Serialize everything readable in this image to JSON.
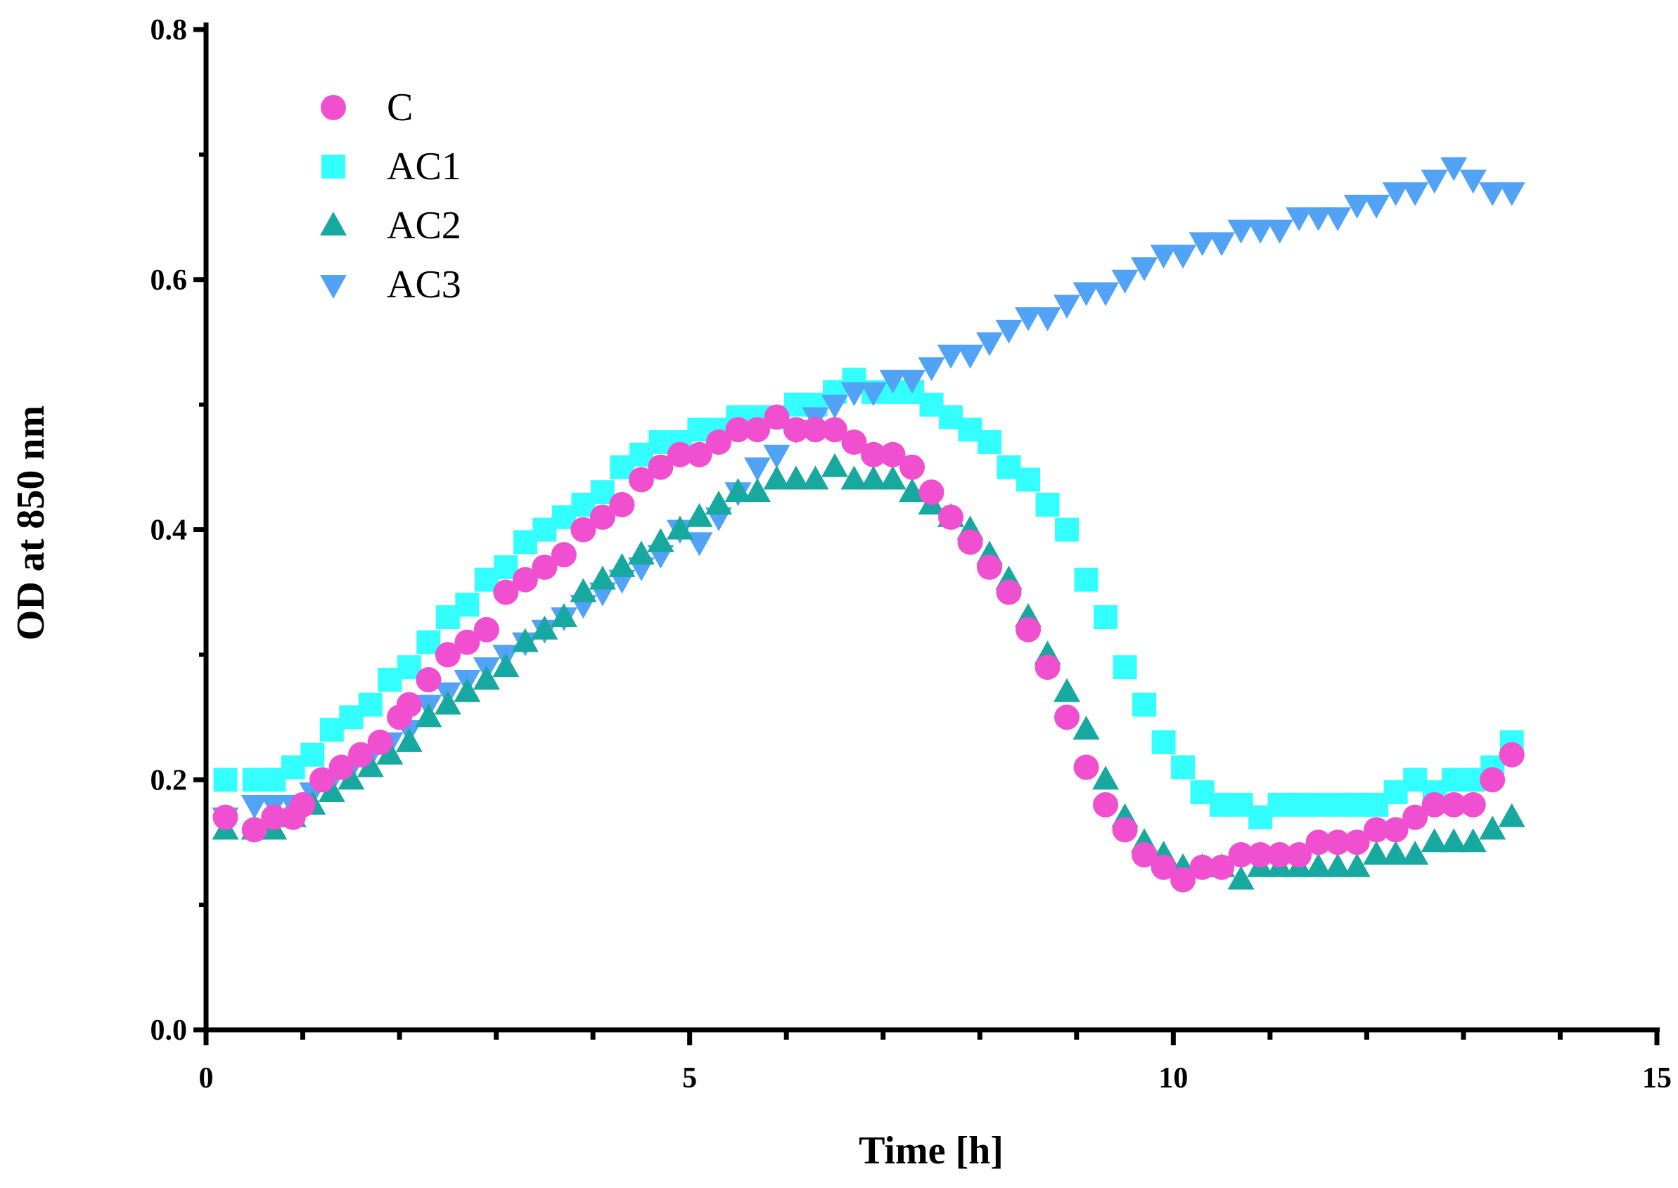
{
  "chart_data": {
    "type": "scatter",
    "xlabel": "Time [h]",
    "ylabel": "OD at 850 nm",
    "xlim": [
      0,
      15
    ],
    "ylim": [
      0,
      0.8
    ],
    "x_ticks": [
      0,
      5,
      10,
      15
    ],
    "x_tick_labels": [
      "0",
      "5",
      "10",
      "15"
    ],
    "y_ticks": [
      0.0,
      0.2,
      0.4,
      0.6,
      0.8
    ],
    "y_tick_labels": [
      "0.0",
      "0.2",
      "0.4",
      "0.6",
      "0.8"
    ],
    "legend_position": "top-left",
    "series": [
      {
        "name": "C",
        "marker": "circle",
        "color": "#F04FD0",
        "x": [
          0.2,
          0.5,
          0.7,
          0.9,
          1.0,
          1.2,
          1.4,
          1.6,
          1.8,
          2.0,
          2.1,
          2.3,
          2.5,
          2.7,
          2.9,
          3.1,
          3.3,
          3.5,
          3.7,
          3.9,
          4.1,
          4.3,
          4.5,
          4.7,
          4.9,
          5.1,
          5.3,
          5.5,
          5.7,
          5.9,
          6.1,
          6.3,
          6.5,
          6.7,
          6.9,
          7.1,
          7.3,
          7.5,
          7.7,
          7.9,
          8.1,
          8.3,
          8.5,
          8.7,
          8.9,
          9.1,
          9.3,
          9.5,
          9.7,
          9.9,
          10.1,
          10.3,
          10.5,
          10.7,
          10.9,
          11.1,
          11.3,
          11.5,
          11.7,
          11.9,
          12.1,
          12.3,
          12.5,
          12.7,
          12.9,
          13.1,
          13.3,
          13.5
        ],
        "y": [
          0.17,
          0.16,
          0.17,
          0.17,
          0.18,
          0.2,
          0.21,
          0.22,
          0.23,
          0.25,
          0.26,
          0.28,
          0.3,
          0.31,
          0.32,
          0.35,
          0.36,
          0.37,
          0.38,
          0.4,
          0.41,
          0.42,
          0.44,
          0.45,
          0.46,
          0.46,
          0.47,
          0.48,
          0.48,
          0.49,
          0.48,
          0.48,
          0.48,
          0.47,
          0.46,
          0.46,
          0.45,
          0.43,
          0.41,
          0.39,
          0.37,
          0.35,
          0.32,
          0.29,
          0.25,
          0.21,
          0.18,
          0.16,
          0.14,
          0.13,
          0.12,
          0.13,
          0.13,
          0.14,
          0.14,
          0.14,
          0.14,
          0.15,
          0.15,
          0.15,
          0.16,
          0.16,
          0.17,
          0.18,
          0.18,
          0.18,
          0.2,
          0.22
        ]
      },
      {
        "name": "AC1",
        "marker": "square",
        "color": "#33FFFF",
        "x": [
          0.2,
          0.5,
          0.7,
          0.9,
          1.1,
          1.3,
          1.5,
          1.7,
          1.9,
          2.1,
          2.3,
          2.5,
          2.7,
          2.9,
          3.1,
          3.3,
          3.5,
          3.7,
          3.9,
          4.1,
          4.3,
          4.5,
          4.7,
          4.9,
          5.1,
          5.3,
          5.5,
          5.7,
          5.9,
          6.1,
          6.3,
          6.5,
          6.7,
          6.9,
          7.1,
          7.3,
          7.5,
          7.7,
          7.9,
          8.1,
          8.3,
          8.5,
          8.7,
          8.9,
          9.1,
          9.3,
          9.5,
          9.7,
          9.9,
          10.1,
          10.3,
          10.5,
          10.7,
          10.9,
          11.1,
          11.3,
          11.5,
          11.7,
          11.9,
          12.1,
          12.3,
          12.5,
          12.7,
          12.9,
          13.1,
          13.3,
          13.5
        ],
        "y": [
          0.2,
          0.2,
          0.2,
          0.21,
          0.22,
          0.24,
          0.25,
          0.26,
          0.28,
          0.29,
          0.31,
          0.33,
          0.34,
          0.36,
          0.37,
          0.39,
          0.4,
          0.41,
          0.42,
          0.43,
          0.45,
          0.46,
          0.47,
          0.47,
          0.48,
          0.48,
          0.49,
          0.49,
          0.49,
          0.5,
          0.5,
          0.51,
          0.52,
          0.51,
          0.51,
          0.51,
          0.5,
          0.49,
          0.48,
          0.47,
          0.45,
          0.44,
          0.42,
          0.4,
          0.36,
          0.33,
          0.29,
          0.26,
          0.23,
          0.21,
          0.19,
          0.18,
          0.18,
          0.17,
          0.18,
          0.18,
          0.18,
          0.18,
          0.18,
          0.18,
          0.19,
          0.2,
          0.19,
          0.2,
          0.2,
          0.21,
          0.23
        ]
      },
      {
        "name": "AC2",
        "marker": "triangle-up",
        "color": "#17A8A0",
        "x": [
          0.2,
          0.5,
          0.7,
          0.9,
          1.1,
          1.3,
          1.5,
          1.7,
          1.9,
          2.1,
          2.3,
          2.5,
          2.7,
          2.9,
          3.1,
          3.3,
          3.5,
          3.7,
          3.9,
          4.1,
          4.3,
          4.5,
          4.7,
          4.9,
          5.1,
          5.3,
          5.5,
          5.7,
          5.9,
          6.1,
          6.3,
          6.5,
          6.7,
          6.9,
          7.1,
          7.3,
          7.5,
          7.7,
          7.9,
          8.1,
          8.3,
          8.5,
          8.7,
          8.9,
          9.1,
          9.3,
          9.5,
          9.7,
          9.9,
          10.1,
          10.3,
          10.5,
          10.7,
          10.9,
          11.1,
          11.3,
          11.5,
          11.7,
          11.9,
          12.1,
          12.3,
          12.5,
          12.7,
          12.9,
          13.1,
          13.3,
          13.5
        ],
        "y": [
          0.16,
          0.16,
          0.16,
          0.17,
          0.18,
          0.19,
          0.2,
          0.21,
          0.22,
          0.23,
          0.25,
          0.26,
          0.27,
          0.28,
          0.29,
          0.31,
          0.32,
          0.33,
          0.35,
          0.36,
          0.37,
          0.38,
          0.39,
          0.4,
          0.41,
          0.42,
          0.43,
          0.43,
          0.44,
          0.44,
          0.44,
          0.45,
          0.44,
          0.44,
          0.44,
          0.43,
          0.42,
          0.41,
          0.4,
          0.38,
          0.36,
          0.33,
          0.3,
          0.27,
          0.24,
          0.2,
          0.17,
          0.15,
          0.14,
          0.13,
          0.13,
          0.13,
          0.12,
          0.13,
          0.13,
          0.13,
          0.13,
          0.13,
          0.13,
          0.14,
          0.14,
          0.14,
          0.15,
          0.15,
          0.15,
          0.16,
          0.17
        ]
      },
      {
        "name": "AC3",
        "marker": "triangle-down",
        "color": "#52A3F5",
        "x": [
          0.2,
          0.5,
          0.7,
          0.9,
          1.1,
          1.3,
          1.5,
          1.7,
          1.9,
          2.1,
          2.3,
          2.5,
          2.7,
          2.9,
          3.1,
          3.3,
          3.5,
          3.7,
          3.9,
          4.1,
          4.3,
          4.5,
          4.7,
          4.9,
          5.1,
          5.3,
          5.5,
          5.7,
          5.9,
          6.1,
          6.3,
          6.5,
          6.7,
          6.9,
          7.1,
          7.3,
          7.5,
          7.7,
          7.9,
          8.1,
          8.3,
          8.5,
          8.7,
          8.9,
          9.1,
          9.3,
          9.5,
          9.7,
          9.9,
          10.1,
          10.3,
          10.5,
          10.7,
          10.9,
          11.1,
          11.3,
          11.5,
          11.7,
          11.9,
          12.1,
          12.3,
          12.5,
          12.7,
          12.9,
          13.1,
          13.3,
          13.5
        ],
        "y": [
          0.17,
          0.18,
          0.18,
          0.18,
          0.19,
          0.2,
          0.21,
          0.22,
          0.23,
          0.24,
          0.26,
          0.27,
          0.28,
          0.29,
          0.3,
          0.31,
          0.32,
          0.33,
          0.34,
          0.35,
          0.36,
          0.37,
          0.38,
          0.4,
          0.39,
          0.41,
          0.43,
          0.45,
          0.46,
          0.48,
          0.49,
          0.5,
          0.51,
          0.51,
          0.52,
          0.52,
          0.53,
          0.54,
          0.54,
          0.55,
          0.56,
          0.57,
          0.57,
          0.58,
          0.59,
          0.59,
          0.6,
          0.61,
          0.62,
          0.62,
          0.63,
          0.63,
          0.64,
          0.64,
          0.64,
          0.65,
          0.65,
          0.65,
          0.66,
          0.66,
          0.67,
          0.67,
          0.68,
          0.69,
          0.68,
          0.67,
          0.67
        ]
      }
    ]
  }
}
